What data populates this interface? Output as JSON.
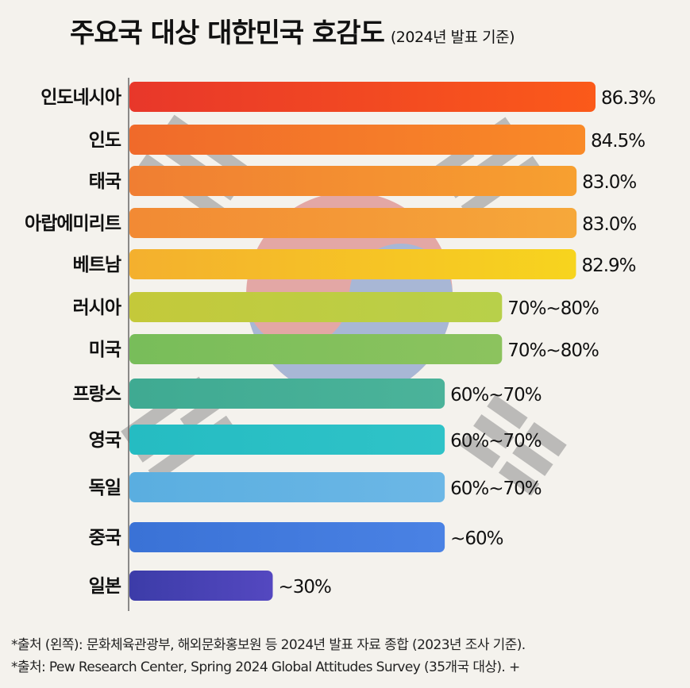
{
  "title": "주요국 대상 대한민국 호감도",
  "subtitle": "(2024년 발표 기준)",
  "chart_data": {
    "type": "bar",
    "orientation": "horizontal",
    "title": "주요국 대상 대한민국 호감도",
    "subtitle": "(2024년 발표 기준)",
    "xlim": [
      5,
      88
    ],
    "grid": false,
    "categories": [
      "인도네시아",
      "인도",
      "태국",
      "아랍에미리트",
      "베트남",
      "러시아",
      "미국",
      "프랑스",
      "영국",
      "독일",
      "중국",
      "일본"
    ],
    "values": [
      86.3,
      84.5,
      83.0,
      83.0,
      82.9,
      70,
      70,
      60,
      60,
      60,
      60,
      30
    ],
    "labels": [
      "86.3%",
      "84.5%",
      "83.0%",
      "83.0%",
      "82.9%",
      "70%~80%",
      "70%~80%",
      "60%~70%",
      "60%~70%",
      "60%~70%",
      "~60%",
      "~30%"
    ],
    "colors": [
      [
        "#e8372a",
        "#fb5a1a"
      ],
      [
        "#f06a2a",
        "#f98a28"
      ],
      [
        "#f07e32",
        "#f7a030"
      ],
      [
        "#f28a34",
        "#f6a83a"
      ],
      [
        "#f4b02e",
        "#f7d41e"
      ],
      [
        "#c4c93a",
        "#b8d04a"
      ],
      [
        "#78bd5a",
        "#8cc35e"
      ],
      [
        "#3faa92",
        "#4bb39a"
      ],
      [
        "#25bcc2",
        "#2fc3c8"
      ],
      [
        "#5aaee0",
        "#6cb7e6"
      ],
      [
        "#3a72d6",
        "#4a82e4"
      ],
      [
        "#3c3ca8",
        "#5448c0"
      ]
    ]
  },
  "footnotes": [
    "*출처 (왼쪽): 문화체육관광부, 해외문화홍보원 등 2024년 발표 자료 종합 (2023년 조사 기준).",
    "*출처: Pew Research Center, Spring 2024 Global Attitudes Survey (35개국 대상). +"
  ]
}
